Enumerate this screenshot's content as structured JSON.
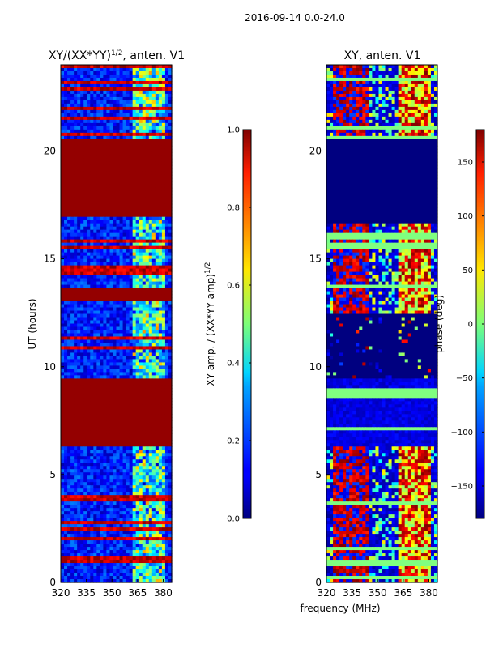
{
  "figure_title": "2016-09-14 0.0-24.0",
  "colors": {
    "jet_low": "#00007f",
    "jet_high": "#7f0000"
  },
  "chart_data": [
    {
      "type": "heatmap",
      "title_main": "XY/(XX*YY)",
      "title_sup": "1/2",
      "title_rest": ", anten. V1",
      "ylabel": "UT (hours)",
      "xlabel": "",
      "xlim": [
        320,
        385
      ],
      "ylim": [
        0,
        24
      ],
      "xticks": [
        "320",
        "335",
        "350",
        "365",
        "380"
      ],
      "xtick_values": [
        320,
        335,
        350,
        365,
        380
      ],
      "yticks": [
        "0",
        "5",
        "10",
        "15",
        "20"
      ],
      "ytick_values": [
        0,
        5,
        10,
        15,
        20
      ],
      "value_range": [
        0.0,
        1.0
      ],
      "saturated_time_bands": [
        [
          6.3,
          9.4
        ],
        [
          13.1,
          13.6
        ],
        [
          16.9,
          20.6
        ]
      ],
      "colorbar": {
        "label_main": "XY amp. / (XX*YY amp)",
        "label_sup": "1/2",
        "range": [
          0.0,
          1.0
        ],
        "tick_values": [
          0.0,
          0.2,
          0.4,
          0.6,
          0.8,
          1.0
        ],
        "ticks": [
          "0.0",
          "0.2",
          "0.4",
          "0.6",
          "0.8",
          "1.0"
        ]
      }
    },
    {
      "type": "heatmap",
      "title": "XY, anten. V1",
      "ylabel": "",
      "xlabel": "frequency (MHz)",
      "xlim": [
        320,
        385
      ],
      "ylim": [
        0,
        24
      ],
      "xticks": [
        "320",
        "335",
        "350",
        "365",
        "380"
      ],
      "xtick_values": [
        320,
        335,
        350,
        365,
        380
      ],
      "yticks": [
        "0",
        "5",
        "10",
        "15",
        "20"
      ],
      "ytick_values": [
        0,
        5,
        10,
        15,
        20
      ],
      "value_range": [
        -180,
        180
      ],
      "zero_phase_time_bands": [
        [
          9.4,
          12.4
        ],
        [
          16.6,
          20.6
        ]
      ],
      "colorbar": {
        "label": "phase (deg)",
        "range": [
          -180,
          180
        ],
        "tick_values": [
          -150,
          -100,
          -50,
          0,
          50,
          100,
          150
        ],
        "ticks": [
          "−150",
          "−100",
          "−50",
          "0",
          "50",
          "100",
          "150"
        ]
      }
    }
  ]
}
